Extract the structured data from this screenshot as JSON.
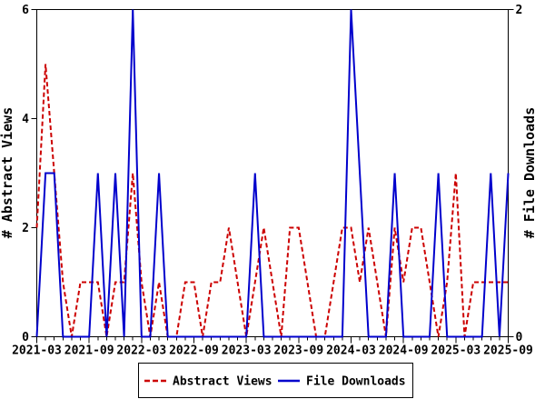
{
  "chart": {
    "left_axis_title": "# Abstract Views",
    "right_axis_title": "# File Downloads",
    "legend": {
      "items": [
        {
          "label": "Abstract Views",
          "color": "#cc0000",
          "style": "dashed"
        },
        {
          "label": "File Downloads",
          "color": "#0000cc",
          "style": "solid"
        }
      ]
    }
  },
  "chart_data": {
    "type": "line",
    "x_frequency": "monthly",
    "x_months": [
      "2021-03",
      "2021-04",
      "2021-05",
      "2021-06",
      "2021-07",
      "2021-08",
      "2021-09",
      "2021-10",
      "2021-11",
      "2021-12",
      "2022-01",
      "2022-02",
      "2022-03",
      "2022-04",
      "2022-05",
      "2022-06",
      "2022-07",
      "2022-08",
      "2022-09",
      "2022-10",
      "2022-11",
      "2022-12",
      "2023-01",
      "2023-02",
      "2023-03",
      "2023-04",
      "2023-05",
      "2023-06",
      "2023-07",
      "2023-08",
      "2023-09",
      "2023-10",
      "2023-11",
      "2023-12",
      "2024-01",
      "2024-02",
      "2024-03",
      "2024-04",
      "2024-05",
      "2024-06",
      "2024-07",
      "2024-08",
      "2024-09",
      "2024-10",
      "2024-11",
      "2024-12",
      "2025-01",
      "2025-02",
      "2025-03",
      "2025-04",
      "2025-05",
      "2025-06",
      "2025-07",
      "2025-08",
      "2025-09"
    ],
    "x_tick_labels": [
      "2021-03",
      "2021-09",
      "2022-03",
      "2022-09",
      "2023-03",
      "2023-09",
      "2024-03",
      "2024-09",
      "2025-03",
      "2025-09"
    ],
    "series": [
      {
        "name": "Abstract Views",
        "yaxis": "left",
        "color": "#cc0000",
        "line_style": "dashed",
        "values": [
          2,
          5,
          3,
          1,
          0,
          1,
          1,
          1,
          0,
          1,
          1,
          3,
          1,
          0,
          1,
          0,
          0,
          1,
          1,
          0,
          1,
          1,
          2,
          1,
          0,
          1,
          2,
          1,
          0,
          2,
          2,
          1,
          0,
          0,
          1,
          2,
          2,
          1,
          2,
          1,
          0,
          2,
          1,
          2,
          2,
          1,
          0,
          1,
          3,
          0,
          1,
          1,
          1,
          1,
          1
        ]
      },
      {
        "name": "File Downloads",
        "yaxis": "right",
        "color": "#0000cc",
        "line_style": "solid",
        "values": [
          0,
          1,
          1,
          0,
          0,
          0,
          0,
          1,
          0,
          1,
          0,
          2,
          0,
          0,
          1,
          0,
          0,
          0,
          0,
          0,
          0,
          0,
          0,
          0,
          0,
          1,
          0,
          0,
          0,
          0,
          0,
          0,
          0,
          0,
          0,
          0,
          2,
          1,
          0,
          0,
          0,
          1,
          0,
          0,
          0,
          0,
          1,
          0,
          0,
          0,
          0,
          0,
          1,
          0,
          1
        ]
      }
    ],
    "left_axis": {
      "label": "# Abstract Views",
      "ticks": [
        0,
        2,
        4,
        6
      ],
      "range": [
        0,
        6
      ]
    },
    "right_axis": {
      "label": "# File Downloads",
      "ticks": [
        0,
        2
      ],
      "range": [
        0,
        2
      ]
    },
    "grid": false,
    "legend_position": "bottom-center"
  }
}
